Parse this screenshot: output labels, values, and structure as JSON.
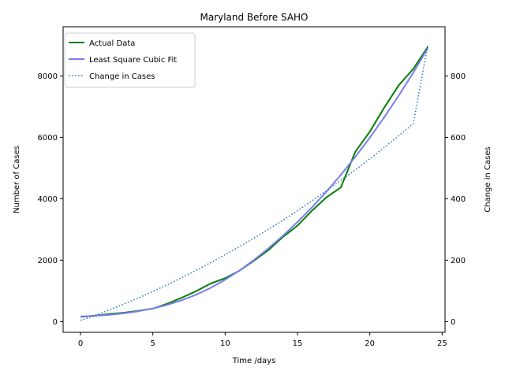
{
  "chart_data": {
    "type": "line",
    "title": "Maryland Before SAHO",
    "xlabel": "Time /days",
    "ylabel": "Number of Cases",
    "y2label": "Change in Cases",
    "xlim": [
      -1.2,
      25.2
    ],
    "ylim": [
      -350,
      9600
    ],
    "y2lim": [
      -35,
      960
    ],
    "xticks": [
      0,
      5,
      10,
      15,
      20,
      25
    ],
    "yticks": [
      0,
      2000,
      4000,
      6000,
      8000
    ],
    "y2ticks": [
      0,
      200,
      400,
      600,
      800
    ],
    "legend_position": "top-left",
    "grid": false,
    "series": [
      {
        "name": "Actual Data",
        "axis": "left",
        "color": "#008000",
        "style": "solid",
        "x": [
          0,
          1,
          2,
          3,
          4,
          5,
          6,
          7,
          8,
          9,
          10,
          11,
          12,
          13,
          14,
          15,
          16,
          17,
          18,
          19,
          20,
          21,
          22,
          23,
          24
        ],
        "values": [
          152,
          190,
          244,
          288,
          349,
          423,
          580,
          775,
          992,
          1239,
          1413,
          1660,
          1985,
          2331,
          2758,
          3125,
          3609,
          4045,
          4371,
          5529,
          6185,
          6968,
          7694,
          8225,
          8936
        ]
      },
      {
        "name": "Least Square Cubic Fit",
        "axis": "left",
        "color": "#7b7bf0",
        "style": "solid",
        "x": [
          0,
          1,
          2,
          3,
          4,
          5,
          6,
          7,
          8,
          9,
          10,
          11,
          12,
          13,
          14,
          15,
          16,
          17,
          18,
          19,
          20,
          21,
          22,
          23,
          24
        ],
        "values": [
          165,
          186,
          219,
          268,
          337,
          428,
          546,
          695,
          876,
          1098,
          1362,
          1666,
          2008,
          2386,
          2797,
          3243,
          3717,
          4230,
          4779,
          5366,
          5990,
          6655,
          7359,
          8106,
          8896
        ]
      },
      {
        "name": "Change in Cases",
        "axis": "right",
        "color": "#1f77b4",
        "style": "dotted",
        "x": [
          0,
          1,
          2,
          3,
          4,
          5,
          6,
          7,
          8,
          9,
          10,
          11,
          12,
          13,
          14,
          15,
          16,
          17,
          18,
          19,
          20,
          21,
          22,
          23,
          24
        ],
        "values": [
          4,
          20,
          38,
          57,
          77,
          98,
          120,
          143,
          167,
          192,
          218,
          244,
          272,
          301,
          330,
          361,
          393,
          426,
          460,
          494,
          530,
          567,
          605,
          644,
          899
        ]
      }
    ]
  }
}
